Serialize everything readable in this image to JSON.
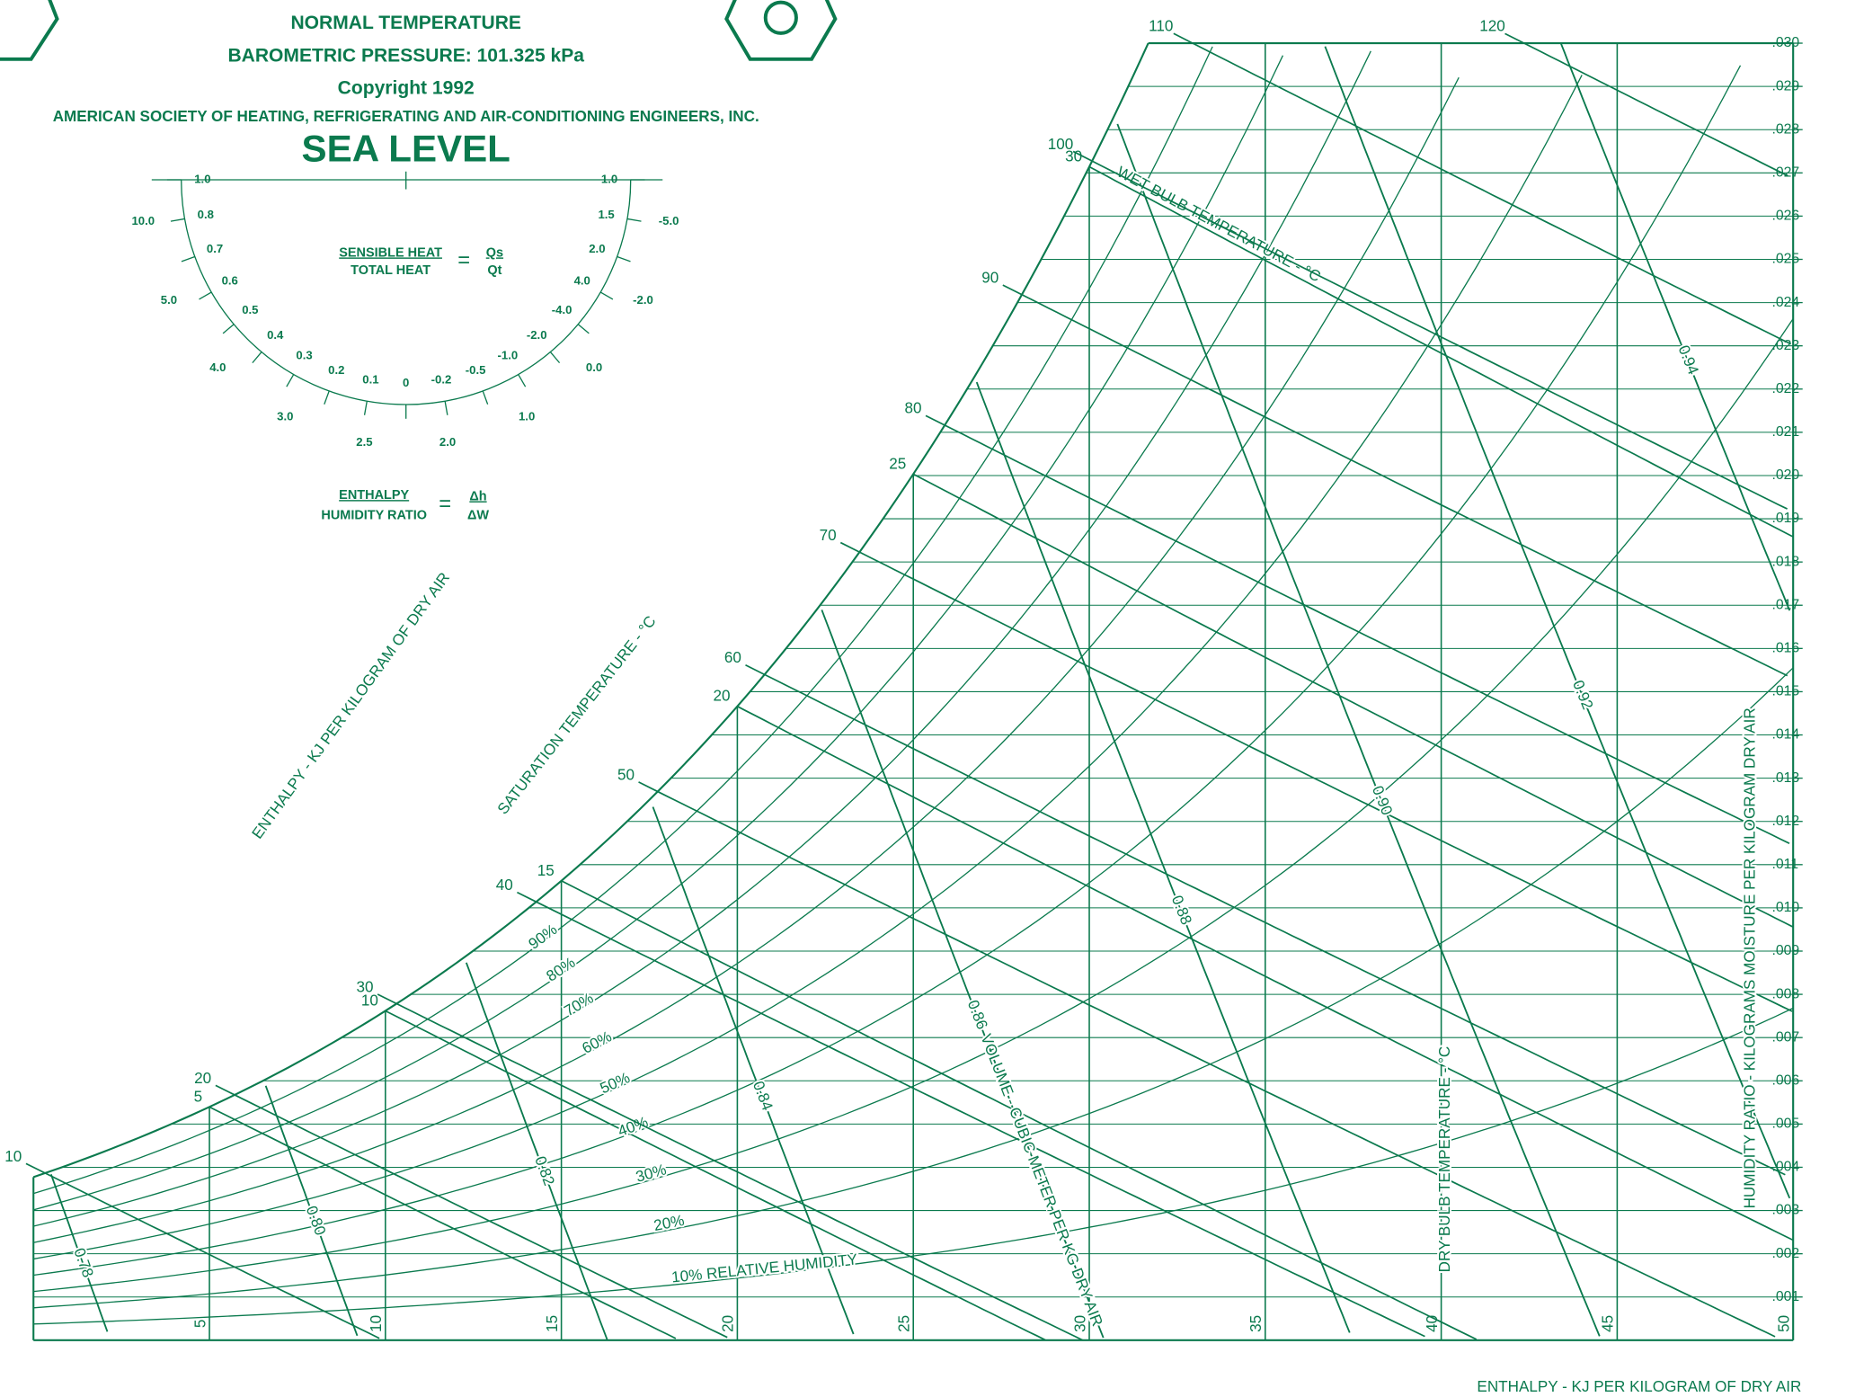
{
  "header": {
    "lines": [
      "NORMAL TEMPERATURE",
      "BAROMETRIC PRESSURE: 101.325 kPa",
      "Copyright 1992",
      "AMERICAN SOCIETY OF HEATING, REFRIGERATING AND AIR-CONDITIONING ENGINEERS, INC."
    ],
    "title": "SEA LEVEL"
  },
  "protractor": {
    "sensible": "SENSIBLE HEAT",
    "total": "TOTAL HEAT",
    "qs": "Qs",
    "qt": "Qt",
    "enthalpy": "ENTHALPY",
    "humidity_ratio": "HUMIDITY RATIO",
    "dh": "Δh",
    "dw": "ΔW",
    "inner_labels": [
      "1.0",
      "0.8",
      "0.7",
      "0.6",
      "0.5",
      "0.4",
      "0.3",
      "0.2",
      "0.1",
      "0",
      "-0.2",
      "-0.5",
      "-1.0",
      "-2.0",
      "-4.0",
      "4.0",
      "2.0",
      "1.5",
      "1.0"
    ],
    "outer_labels": [
      "10.0",
      "5.0",
      "4.0",
      "3.0",
      "2.5",
      "2.0",
      "1.0",
      "0.0",
      "-2.0",
      "-5.0"
    ]
  },
  "chart_data": {
    "type": "psychrometric",
    "color": "#0b7a4e",
    "pressure": 101.325,
    "x_label": "DRY BULB TEMPERATURE - °C",
    "y_label": "HUMIDITY RATIO - KILOGRAMS MOISTURE PER KILOGRAM DRY AIR",
    "saturation_label": "SATURATION TEMPERATURE - °C",
    "enthalpy_label": "ENTHALPY - KJ PER KILOGRAM OF DRY AIR",
    "xlim": [
      0,
      50
    ],
    "xticks": [
      5,
      10,
      15,
      20,
      25,
      30,
      35,
      40,
      45,
      50
    ],
    "ylim": [
      0,
      0.03
    ],
    "yticks": [
      {
        "value": 0.001,
        "label": ".001"
      },
      {
        "value": 0.002,
        "label": ".002"
      },
      {
        "value": 0.003,
        "label": ".003"
      },
      {
        "value": 0.004,
        "label": ".004"
      },
      {
        "value": 0.005,
        "label": ".005"
      },
      {
        "value": 0.006,
        "label": ".006"
      },
      {
        "value": 0.007,
        "label": ".007"
      },
      {
        "value": 0.008,
        "label": ".008"
      },
      {
        "value": 0.009,
        "label": ".009"
      },
      {
        "value": 0.01,
        "label": ".010"
      },
      {
        "value": 0.011,
        "label": ".011"
      },
      {
        "value": 0.012,
        "label": ".012"
      },
      {
        "value": 0.013,
        "label": ".013"
      },
      {
        "value": 0.014,
        "label": ".014"
      },
      {
        "value": 0.015,
        "label": ".015"
      },
      {
        "value": 0.016,
        "label": ".016"
      },
      {
        "value": 0.017,
        "label": ".017"
      },
      {
        "value": 0.018,
        "label": ".018"
      },
      {
        "value": 0.019,
        "label": ".019"
      },
      {
        "value": 0.02,
        "label": ".020"
      },
      {
        "value": 0.021,
        "label": ".021"
      },
      {
        "value": 0.022,
        "label": ".022"
      },
      {
        "value": 0.023,
        "label": ".023"
      },
      {
        "value": 0.024,
        "label": ".024"
      },
      {
        "value": 0.025,
        "label": ".025"
      },
      {
        "value": 0.026,
        "label": ".026"
      },
      {
        "value": 0.027,
        "label": ".027"
      },
      {
        "value": 0.028,
        "label": ".028"
      },
      {
        "value": 0.029,
        "label": ".029"
      },
      {
        "value": 0.03,
        "label": ".030"
      }
    ],
    "relative_humidity": {
      "values": [
        10,
        20,
        30,
        40,
        50,
        60,
        70,
        80,
        90
      ],
      "value_labels": [
        "10% RELATIVE HUMIDITY",
        "20%",
        "30%",
        "40%",
        "50%",
        "60%",
        "70%",
        "80%",
        "90%"
      ]
    },
    "wet_bulb": {
      "name": "WET BULB TEMPERATURE - °C",
      "values": [
        5,
        10,
        15,
        20,
        25,
        30
      ]
    },
    "enthalpy": {
      "values": [
        10,
        20,
        30,
        40,
        50,
        60,
        70,
        80,
        90,
        100,
        110,
        120
      ]
    },
    "volume": {
      "name": "VOLUME - CUBIC METER PER KG DRY AIR",
      "values": [
        0.78,
        0.8,
        0.82,
        0.84,
        0.86,
        0.88,
        0.9,
        0.92,
        0.94
      ],
      "value_labels": [
        "0.78",
        "0.80",
        "0.82",
        "0.84",
        "0.86",
        "0.88",
        "0.90",
        "0.92",
        "0.94"
      ]
    }
  }
}
